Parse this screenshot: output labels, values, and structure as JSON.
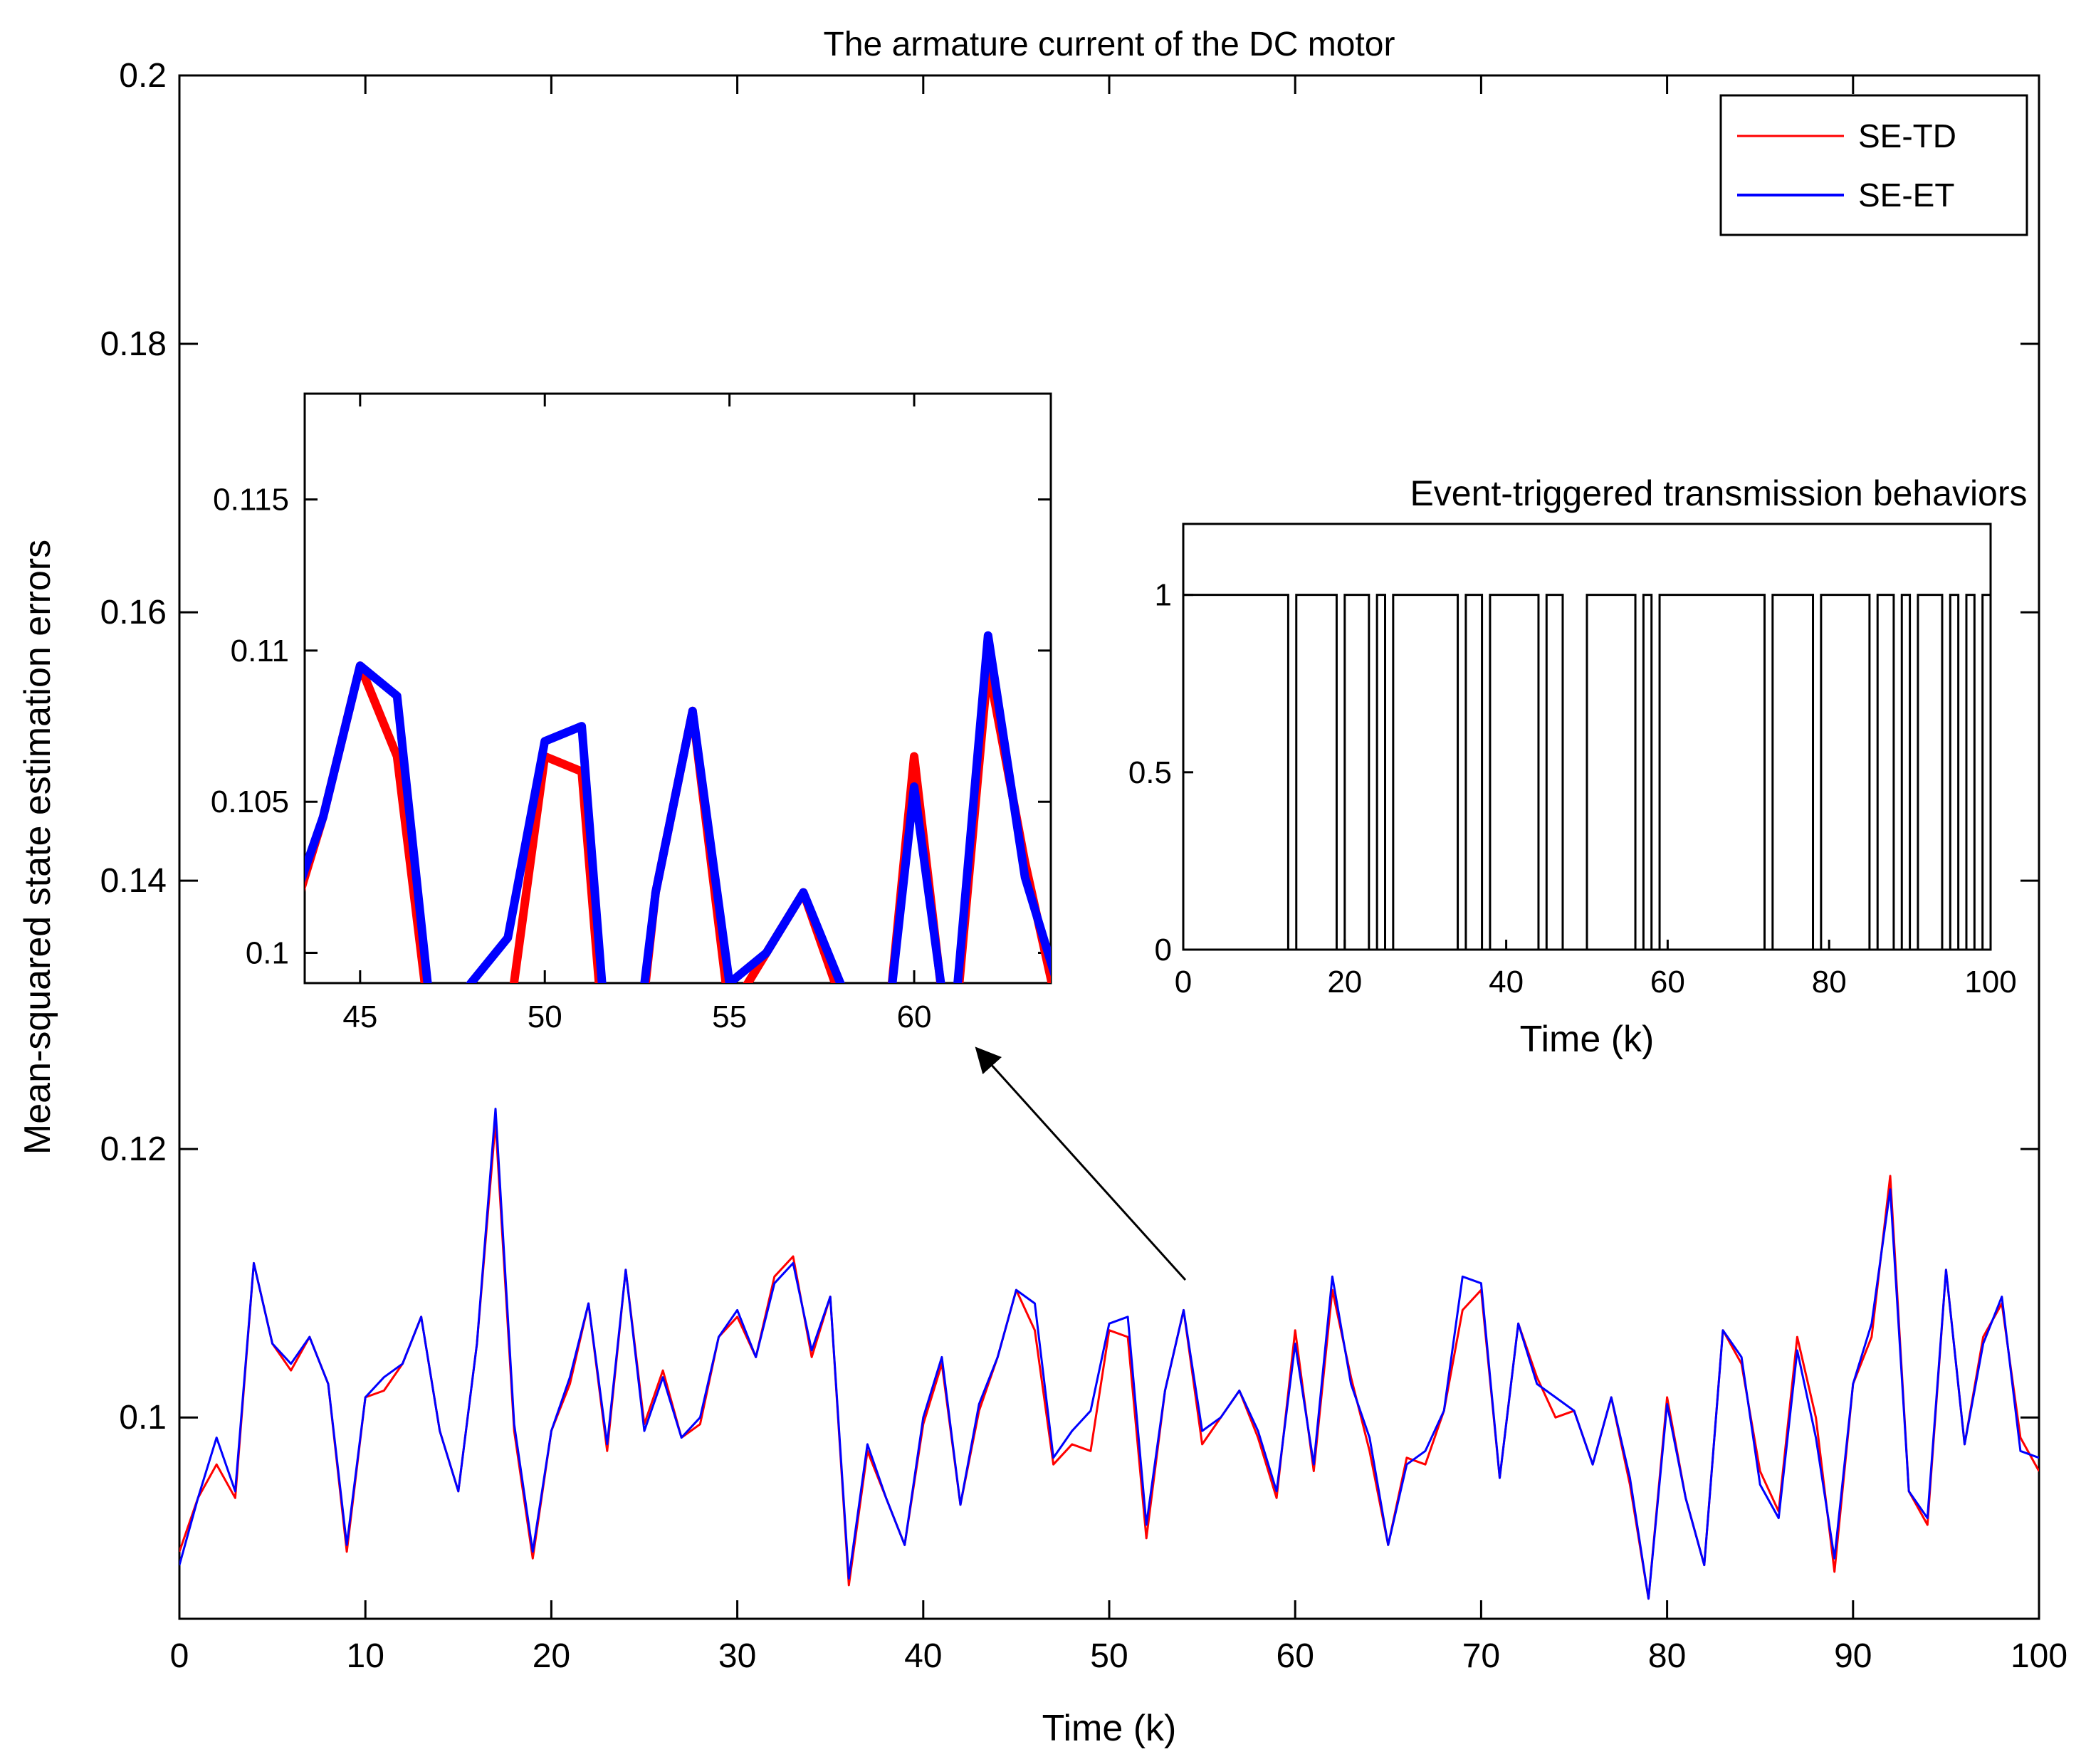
{
  "chart_data": [
    {
      "id": "main",
      "type": "line",
      "title": "The armature current of the DC motor",
      "xlabel": "Time (k)",
      "ylabel": "Mean-squared state estimation errors",
      "xlim": [
        0,
        100
      ],
      "ylim": [
        0.085,
        0.2
      ],
      "xticks": [
        0,
        10,
        20,
        30,
        40,
        50,
        60,
        70,
        80,
        90,
        100
      ],
      "xtick_labels": [
        "0",
        "10",
        "20",
        "30",
        "40",
        "50",
        "60",
        "70",
        "80",
        "90",
        "100"
      ],
      "yticks": [
        0.1,
        0.12,
        0.14,
        0.16,
        0.18,
        0.2
      ],
      "ytick_labels": [
        "0.1",
        "0.12",
        "0.14",
        "0.16",
        "0.18",
        "0.2"
      ],
      "legend": {
        "position": "top-right",
        "entries": [
          "SE-TD",
          "SE-ET"
        ]
      },
      "x": [
        0,
        1,
        2,
        3,
        4,
        5,
        6,
        7,
        8,
        9,
        10,
        11,
        12,
        13,
        14,
        15,
        16,
        17,
        18,
        19,
        20,
        21,
        22,
        23,
        24,
        25,
        26,
        27,
        28,
        29,
        30,
        31,
        32,
        33,
        34,
        35,
        36,
        37,
        38,
        39,
        40,
        41,
        42,
        43,
        44,
        45,
        46,
        47,
        48,
        49,
        50,
        51,
        52,
        53,
        54,
        55,
        56,
        57,
        58,
        59,
        60,
        61,
        62,
        63,
        64,
        65,
        66,
        67,
        68,
        69,
        70,
        71,
        72,
        73,
        74,
        75,
        76,
        77,
        78,
        79,
        80,
        81,
        82,
        83,
        84,
        85,
        86,
        87,
        88,
        89,
        90,
        91,
        92,
        93,
        94,
        95,
        96,
        97,
        98,
        99,
        100
      ],
      "series": [
        {
          "name": "SE-TD",
          "color": "#ff0000",
          "values": [
            0.09,
            0.094,
            0.0965,
            0.094,
            0.1115,
            0.1055,
            0.1035,
            0.106,
            0.1025,
            0.09,
            0.1015,
            0.102,
            0.104,
            0.1075,
            0.099,
            0.0945,
            0.1055,
            0.122,
            0.099,
            0.0895,
            0.099,
            0.1025,
            0.1085,
            0.0975,
            0.111,
            0.0995,
            0.1035,
            0.0985,
            0.0995,
            0.106,
            0.1075,
            0.1045,
            0.1105,
            0.112,
            0.1045,
            0.109,
            0.0875,
            0.0975,
            0.094,
            0.0905,
            0.0995,
            0.104,
            0.0935,
            0.1005,
            0.1045,
            0.1095,
            0.1065,
            0.0965,
            0.098,
            0.0975,
            0.1065,
            0.106,
            0.091,
            0.102,
            0.108,
            0.098,
            0.1,
            0.102,
            0.0985,
            0.094,
            0.1065,
            0.096,
            0.1095,
            0.103,
            0.0975,
            0.0905,
            0.097,
            0.0965,
            0.1005,
            0.108,
            0.1095,
            0.0955,
            0.107,
            0.103,
            0.1,
            0.1005,
            0.0965,
            0.1015,
            0.095,
            0.0865,
            0.1015,
            0.094,
            0.089,
            0.1065,
            0.104,
            0.096,
            0.093,
            0.106,
            0.1,
            0.0885,
            0.1025,
            0.106,
            0.118,
            0.0945,
            0.092,
            0.111,
            0.098,
            0.106,
            0.1085,
            0.0985,
            0.096
          ]
        },
        {
          "name": "SE-ET",
          "color": "#0000ff",
          "values": [
            0.089,
            0.094,
            0.0985,
            0.0945,
            0.1115,
            0.1055,
            0.104,
            0.106,
            0.1025,
            0.0905,
            0.1015,
            0.103,
            0.104,
            0.1075,
            0.099,
            0.0945,
            0.1055,
            0.123,
            0.0995,
            0.09,
            0.099,
            0.103,
            0.1085,
            0.098,
            0.111,
            0.099,
            0.103,
            0.0985,
            0.1,
            0.106,
            0.108,
            0.1045,
            0.11,
            0.1115,
            0.105,
            0.109,
            0.088,
            0.098,
            0.094,
            0.0905,
            0.1,
            0.1045,
            0.0935,
            0.101,
            0.1045,
            0.1095,
            0.1085,
            0.097,
            0.099,
            0.1005,
            0.107,
            0.1075,
            0.092,
            0.102,
            0.108,
            0.099,
            0.1,
            0.102,
            0.099,
            0.0945,
            0.1055,
            0.0965,
            0.1105,
            0.1025,
            0.0985,
            0.0905,
            0.0965,
            0.0975,
            0.1005,
            0.1105,
            0.11,
            0.0955,
            0.107,
            0.1025,
            0.1015,
            0.1005,
            0.0965,
            0.1015,
            0.0955,
            0.0865,
            0.101,
            0.094,
            0.089,
            0.1065,
            0.1045,
            0.095,
            0.0925,
            0.105,
            0.0985,
            0.0895,
            0.1025,
            0.107,
            0.117,
            0.0945,
            0.0925,
            0.111,
            0.098,
            0.1055,
            0.109,
            0.0975,
            0.097
          ]
        }
      ]
    },
    {
      "id": "zoom-inset",
      "type": "line",
      "title": "",
      "xlim": [
        43.5,
        63.7
      ],
      "ylim": [
        0.099,
        0.1185
      ],
      "xticks": [
        45,
        50,
        55,
        60
      ],
      "xtick_labels": [
        "45",
        "50",
        "55",
        "60"
      ],
      "yticks": [
        0.1,
        0.105,
        0.11,
        0.115
      ],
      "ytick_labels": [
        "0.1",
        "0.105",
        "0.11",
        "0.115"
      ],
      "note": "Magnified view of the main plot over k = 43.5 to 63.7"
    },
    {
      "id": "event-inset",
      "type": "line",
      "title": "Event-triggered transmission behaviors",
      "xlabel": "Time (k)",
      "xlim": [
        0,
        100
      ],
      "ylim": [
        0,
        1.2
      ],
      "xticks": [
        0,
        20,
        40,
        60,
        80,
        100
      ],
      "xtick_labels": [
        "0",
        "20",
        "40",
        "60",
        "80",
        "100"
      ],
      "yticks": [
        0,
        0.5,
        1
      ],
      "ytick_labels": [
        "0",
        "0.5",
        "1"
      ],
      "step_intervals_high": [
        [
          0,
          13
        ],
        [
          14,
          19
        ],
        [
          20,
          23
        ],
        [
          24,
          25
        ],
        [
          26,
          34
        ],
        [
          35,
          37
        ],
        [
          38,
          44
        ],
        [
          45,
          47
        ],
        [
          50,
          56
        ],
        [
          57,
          58
        ],
        [
          59,
          72
        ],
        [
          73,
          78
        ],
        [
          79,
          85
        ],
        [
          86,
          88
        ],
        [
          89,
          90
        ],
        [
          91,
          94
        ],
        [
          95,
          96
        ],
        [
          97,
          98
        ],
        [
          99,
          100
        ]
      ]
    }
  ],
  "annotation": {
    "type": "arrow",
    "from": [
      54,
      0.1085
    ],
    "to_inset_tick": 60
  }
}
